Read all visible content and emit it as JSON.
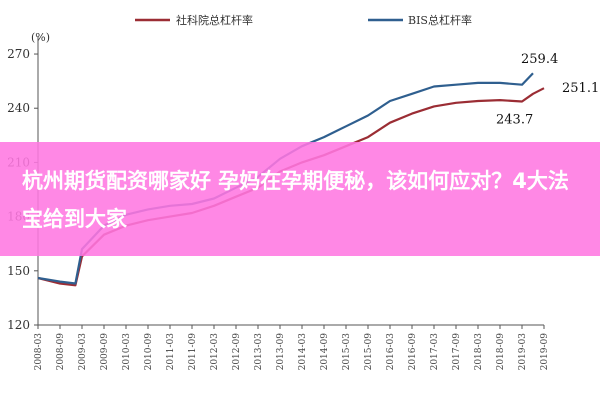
{
  "overlay": {
    "headline": "杭州期货配资哪家好 孕妈在孕期便秘，该如何应对？4大法宝给到大家"
  },
  "chart_data": {
    "type": "line",
    "unit_label": "(%)",
    "title": "",
    "xlabel": "",
    "ylabel": "",
    "ylim": [
      120,
      275
    ],
    "yticks": [
      120,
      150,
      180,
      210,
      240,
      270
    ],
    "grid": false,
    "legend": "top",
    "categories": [
      "2008-03",
      "2008-09",
      "2009-03",
      "2009-09",
      "2010-03",
      "2010-09",
      "2011-03",
      "2011-09",
      "2012-03",
      "2012-09",
      "2013-03",
      "2013-09",
      "2014-03",
      "2014-09",
      "2015-03",
      "2015-09",
      "2016-03",
      "2016-09",
      "2017-03",
      "2017-09",
      "2018-03",
      "2018-09",
      "2019-03",
      "2019-09"
    ],
    "series": [
      {
        "name": "社科院总杠杆率",
        "color": "#9b2d34",
        "points": [
          [
            0,
            146
          ],
          [
            1,
            143
          ],
          [
            1.7,
            142
          ],
          [
            2,
            158
          ],
          [
            3,
            170
          ],
          [
            4,
            175
          ],
          [
            5,
            178
          ],
          [
            6,
            180
          ],
          [
            7,
            182
          ],
          [
            8,
            186
          ],
          [
            9,
            191
          ],
          [
            10,
            196
          ],
          [
            11,
            205
          ],
          [
            12,
            210
          ],
          [
            13,
            214
          ],
          [
            14,
            219
          ],
          [
            15,
            224
          ],
          [
            16,
            232
          ],
          [
            17,
            237
          ],
          [
            18,
            241
          ],
          [
            19,
            243
          ],
          [
            20,
            244
          ],
          [
            21,
            244.5
          ],
          [
            22,
            243.7
          ],
          [
            22.5,
            248
          ],
          [
            23,
            251.1
          ]
        ]
      },
      {
        "name": "BIS总杠杆率",
        "color": "#2f5f8f",
        "points": [
          [
            0,
            146
          ],
          [
            1,
            144
          ],
          [
            1.7,
            143
          ],
          [
            2,
            162
          ],
          [
            3,
            175
          ],
          [
            4,
            181
          ],
          [
            5,
            184
          ],
          [
            6,
            186
          ],
          [
            7,
            187
          ],
          [
            8,
            190
          ],
          [
            9,
            196
          ],
          [
            10,
            202
          ],
          [
            11,
            212
          ],
          [
            12,
            219
          ],
          [
            13,
            224
          ],
          [
            14,
            230
          ],
          [
            15,
            236
          ],
          [
            16,
            244
          ],
          [
            17,
            248
          ],
          [
            18,
            252
          ],
          [
            19,
            253
          ],
          [
            20,
            254
          ],
          [
            21,
            254
          ],
          [
            22,
            253
          ],
          [
            22.5,
            259.4
          ]
        ]
      }
    ],
    "annotations": [
      {
        "text": "259.4",
        "x": 22.5,
        "y": 259.4
      },
      {
        "text": "251.1",
        "x": 23,
        "y": 251.1
      },
      {
        "text": "243.7",
        "x": 22,
        "y": 243.7
      }
    ]
  }
}
